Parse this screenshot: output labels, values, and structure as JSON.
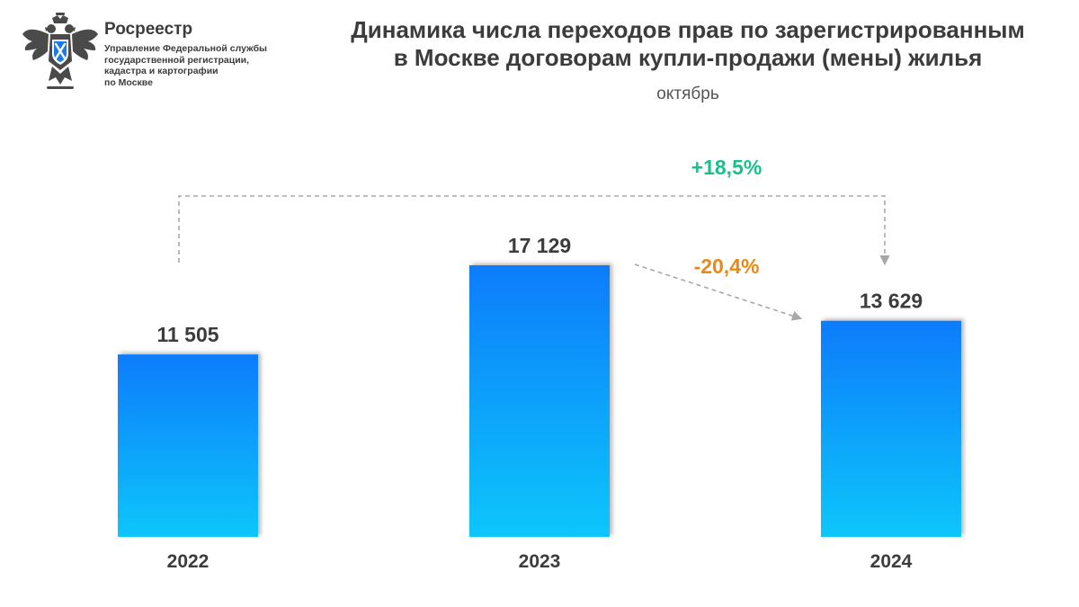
{
  "header": {
    "org_name": "Росреестр",
    "org_sub_lines": [
      "Управление Федеральной службы",
      "государственной регистрации,",
      "кадастра и картографии",
      "по Москве"
    ],
    "title_lines": [
      "Динамика числа переходов прав по зарегистрированным",
      "в Москве договорам купли-продажи (мены)  жилья"
    ],
    "subtitle": "октябрь"
  },
  "colors": {
    "bar_top": "#0a7cfb",
    "bar_bottom": "#0ac6fb",
    "growth": "#1bbf8d",
    "decline": "#e88a1a",
    "text": "#3c3c3c",
    "arrow": "#a8a8a8"
  },
  "logo_icon": "double-headed-eagle-emblem",
  "chart_data": {
    "type": "bar",
    "categories": [
      "2022",
      "2023",
      "2024"
    ],
    "values": [
      11505,
      17129,
      13629
    ],
    "value_labels": [
      "11 505",
      "17 129",
      "13 629"
    ],
    "ylim": [
      0,
      17129
    ],
    "grid": false,
    "annotations": [
      {
        "text": "+18,5%",
        "from": "2022",
        "to": "2024",
        "kind": "growth"
      },
      {
        "text": "-20,4%",
        "from": "2023",
        "to": "2024",
        "kind": "decline"
      }
    ]
  }
}
